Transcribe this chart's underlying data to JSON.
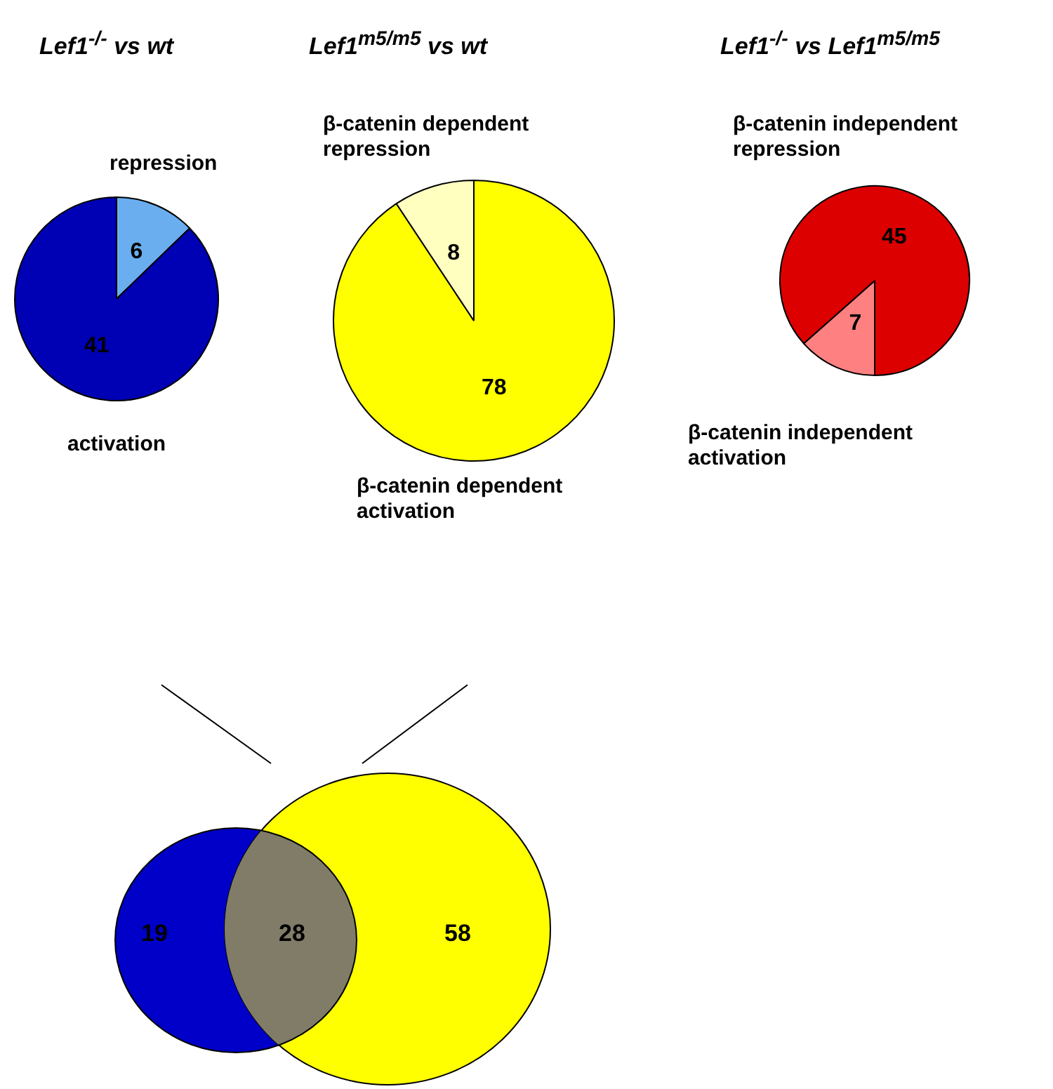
{
  "chart_data": [
    {
      "type": "pie",
      "title": "Lef1$^{-/-}$ vs wt",
      "categories": [
        "repression",
        "activation"
      ],
      "values": [
        6,
        41
      ],
      "colors": [
        "#6aaef0",
        "#0000b4"
      ],
      "data_labels": true,
      "legend": false
    },
    {
      "type": "pie",
      "title": "Lef1$^{m5/m5}$ vs wt",
      "categories": [
        "β-catenin dependent activation",
        "β-catenin dependent repression"
      ],
      "values": [
        78,
        8
      ],
      "colors": [
        "#ffff00",
        "#ffffc0"
      ],
      "data_labels": true,
      "legend": false
    },
    {
      "type": "pie",
      "title": "Lef1$^{-/-}$ vs Lef1$^{m5/m5}$",
      "categories": [
        "β-catenin independent activation",
        "β-catenin independent repression"
      ],
      "values": [
        7,
        45
      ],
      "colors": [
        "#ff8080",
        "#dd0000"
      ],
      "data_labels": true,
      "legend": false
    },
    {
      "type": "other",
      "values": [
        19,
        28,
        58
      ],
      "colors": [
        "#0000c8",
        "#807c68",
        "#ffff00"
      ],
      "data_labels": true
    }
  ]
}
